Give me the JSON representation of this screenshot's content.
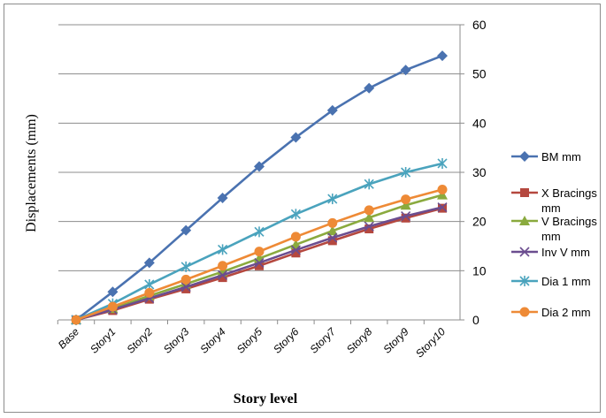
{
  "chart_data": {
    "type": "line",
    "categories": [
      "Base",
      "Story1",
      "Story2",
      "Story3",
      "Story4",
      "Story5",
      "Story6",
      "Story7",
      "Story8",
      "Story9",
      "Story10"
    ],
    "xlabel": "Story level",
    "ylabel": "Displacements (mm)",
    "ylim": [
      0,
      60
    ],
    "yticks": [
      0,
      10,
      20,
      30,
      40,
      50,
      60
    ],
    "y_axis_side": "right",
    "grid": "horizontal",
    "legend_position": "right",
    "series": [
      {
        "name": "BM mm",
        "color": "#4a72b0",
        "marker": "diamond",
        "values": [
          0,
          5.7,
          11.6,
          18.2,
          24.8,
          31.2,
          37.1,
          42.6,
          47.1,
          50.8,
          53.7
        ]
      },
      {
        "name": "X Bracings mm",
        "color": "#b5483f",
        "marker": "square",
        "values": [
          0,
          1.9,
          4.2,
          6.3,
          8.6,
          11.0,
          13.6,
          16.1,
          18.5,
          20.7,
          22.7
        ]
      },
      {
        "name": "V Bracings mm",
        "color": "#8aaa3e",
        "marker": "triangle",
        "values": [
          0,
          2.3,
          4.9,
          7.3,
          9.8,
          12.5,
          15.3,
          18.1,
          20.8,
          23.3,
          25.4
        ]
      },
      {
        "name": "Inv V mm",
        "color": "#6b4d8f",
        "marker": "x",
        "values": [
          0,
          2.1,
          4.4,
          6.7,
          9.1,
          11.6,
          14.2,
          16.7,
          19.0,
          21.1,
          22.9
        ]
      },
      {
        "name": "Dia 1 mm",
        "color": "#4aa3bd",
        "marker": "asterisk",
        "values": [
          0,
          3.3,
          7.2,
          10.8,
          14.3,
          17.9,
          21.5,
          24.6,
          27.6,
          30.0,
          31.8
        ]
      },
      {
        "name": "Dia 2 mm",
        "color": "#ee8a36",
        "marker": "circle",
        "values": [
          0,
          2.7,
          5.5,
          8.2,
          11.0,
          13.9,
          16.9,
          19.7,
          22.3,
          24.5,
          26.5
        ]
      }
    ]
  }
}
